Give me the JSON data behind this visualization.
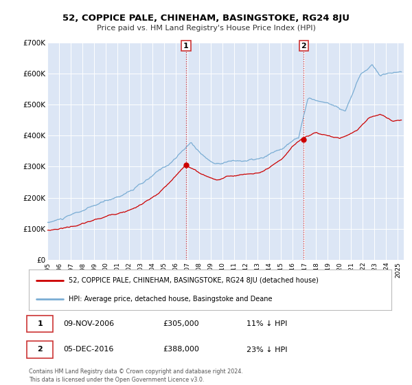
{
  "title": "52, COPPICE PALE, CHINEHAM, BASINGSTOKE, RG24 8JU",
  "subtitle": "Price paid vs. HM Land Registry's House Price Index (HPI)",
  "legend_line1": "52, COPPICE PALE, CHINEHAM, BASINGSTOKE, RG24 8JU (detached house)",
  "legend_line2": "HPI: Average price, detached house, Basingstoke and Deane",
  "annotation1_date": "09-NOV-2006",
  "annotation1_price": "£305,000",
  "annotation1_hpi": "11% ↓ HPI",
  "annotation2_date": "05-DEC-2016",
  "annotation2_price": "£388,000",
  "annotation2_hpi": "23% ↓ HPI",
  "footer": "Contains HM Land Registry data © Crown copyright and database right 2024.\nThis data is licensed under the Open Government Licence v3.0.",
  "plot_bg_color": "#dce6f5",
  "red_color": "#cc0000",
  "blue_color": "#7aadd4",
  "vline_color": "#dd3333",
  "sale1_x": 2006.87,
  "sale1_y": 305000,
  "sale2_x": 2016.93,
  "sale2_y": 388000,
  "ylim": [
    0,
    700000
  ],
  "xlim_lo": 1995.0,
  "xlim_hi": 2025.5,
  "yticks": [
    0,
    100000,
    200000,
    300000,
    400000,
    500000,
    600000,
    700000
  ],
  "ytick_labels": [
    "£0",
    "£100K",
    "£200K",
    "£300K",
    "£400K",
    "£500K",
    "£600K",
    "£700K"
  ]
}
